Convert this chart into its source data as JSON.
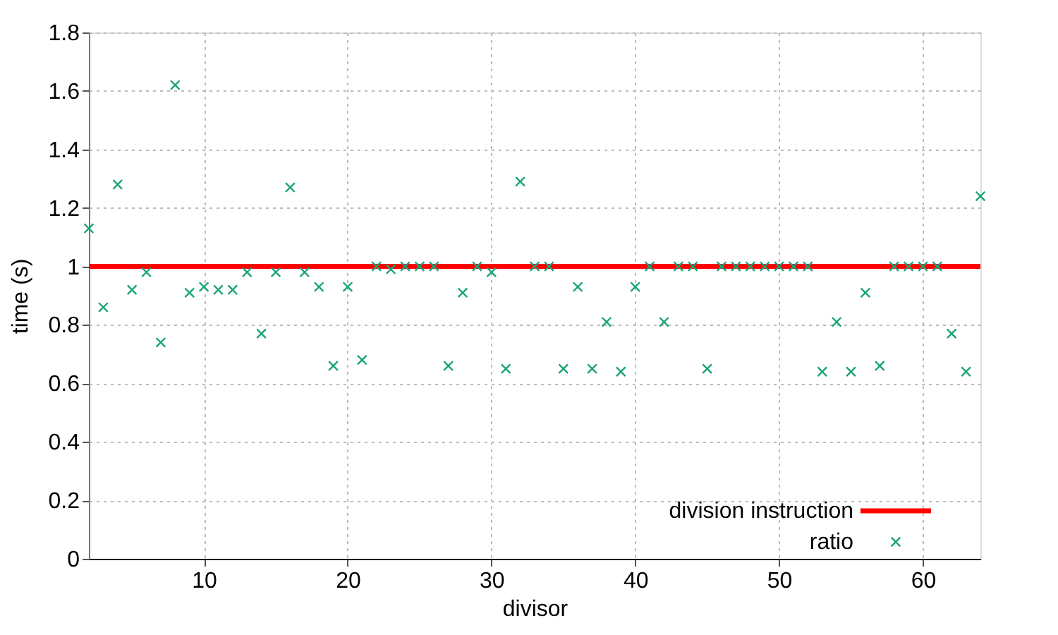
{
  "chart_data": {
    "type": "scatter",
    "xlabel": "divisor",
    "ylabel": "time (s)",
    "xlim": [
      2,
      64
    ],
    "xticks": [
      10,
      20,
      30,
      40,
      50,
      60
    ],
    "ylim": [
      0,
      1.8
    ],
    "yticks": [
      0,
      0.2,
      0.4,
      0.6,
      0.8,
      1,
      1.2,
      1.4,
      1.6,
      1.8
    ],
    "grid": true,
    "legend": "bottom right",
    "series": [
      {
        "name": "division instruction",
        "type": "line",
        "color": "#ff0000",
        "line_style": "solid",
        "marker": "none",
        "x": [
          2,
          64
        ],
        "values": [
          1,
          1
        ]
      },
      {
        "name": "ratio",
        "color": "#1aa37a",
        "marker": "cross",
        "x": [
          2,
          3,
          4,
          5,
          6,
          7,
          8,
          9,
          10,
          11,
          12,
          13,
          14,
          15,
          16,
          17,
          18,
          19,
          20,
          21,
          22,
          23,
          24,
          25,
          26,
          27,
          28,
          29,
          30,
          31,
          32,
          33,
          34,
          35,
          36,
          37,
          38,
          39,
          40,
          41,
          42,
          43,
          44,
          45,
          46,
          47,
          48,
          49,
          50,
          51,
          52,
          53,
          54,
          55,
          56,
          57,
          58,
          59,
          60,
          61,
          62,
          63,
          64
        ],
        "values": [
          1.13,
          0.86,
          1.28,
          0.92,
          0.98,
          0.74,
          1.62,
          0.91,
          0.93,
          0.92,
          0.92,
          0.98,
          0.77,
          0.98,
          1.27,
          0.98,
          0.93,
          0.66,
          0.93,
          0.68,
          1.0,
          0.99,
          1.0,
          1.0,
          1.0,
          0.66,
          0.91,
          1.0,
          0.98,
          0.65,
          1.29,
          1.0,
          1.0,
          0.65,
          0.93,
          0.65,
          0.81,
          0.64,
          0.93,
          1.0,
          0.81,
          1.0,
          1.0,
          0.65,
          1.0,
          1.0,
          1.0,
          1.0,
          1.0,
          1.0,
          1.0,
          0.64,
          0.81,
          0.64,
          0.91,
          0.66,
          1.0,
          1.0,
          1.0,
          1.0,
          0.77,
          0.64,
          1.24
        ]
      }
    ]
  }
}
